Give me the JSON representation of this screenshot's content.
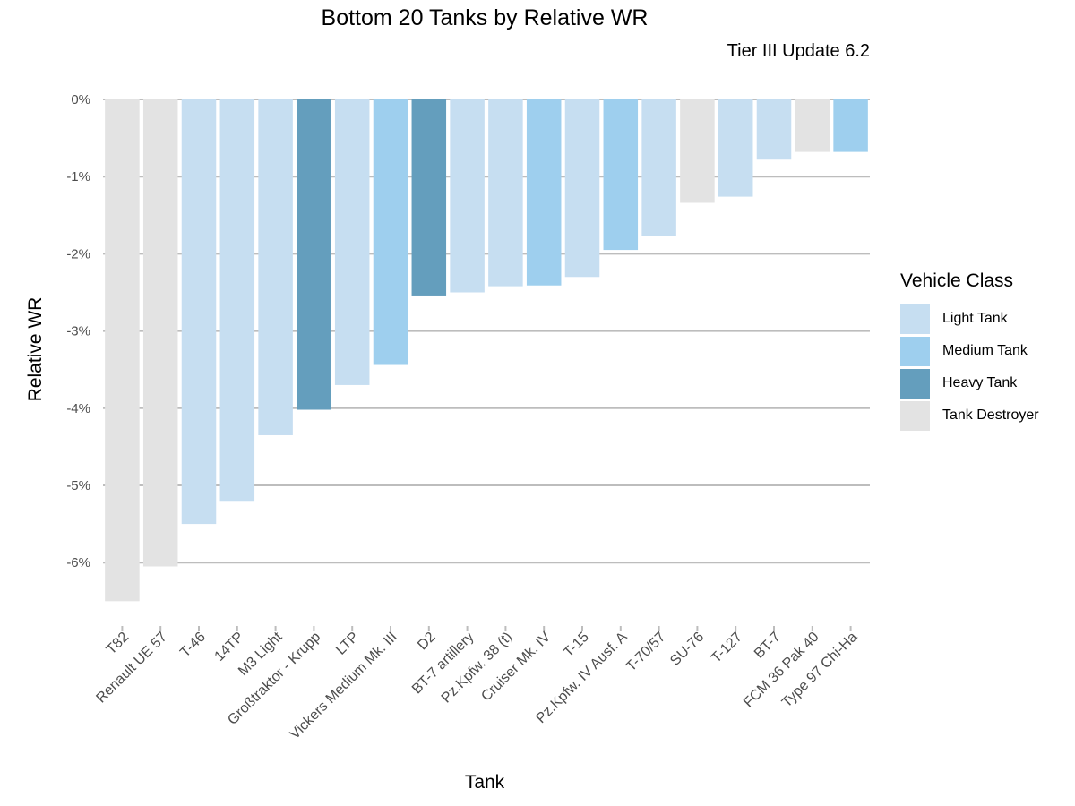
{
  "title": "Bottom 20 Tanks by Relative WR",
  "subtitle": "Tier III Update 6.2",
  "legend": {
    "title": "Vehicle Class",
    "items": [
      {
        "label": "Light Tank",
        "color": "#c6def1"
      },
      {
        "label": "Medium Tank",
        "color": "#9ecfee"
      },
      {
        "label": "Heavy Tank",
        "color": "#649ebd"
      },
      {
        "label": "Tank Destroyer",
        "color": "#e3e3e3"
      }
    ]
  },
  "chart_data": {
    "type": "bar",
    "title": "Bottom 20 Tanks by Relative WR",
    "subtitle": "Tier III Update 6.2",
    "xlabel": "Tank",
    "ylabel": "Relative WR",
    "ylim": [
      -6.5,
      0
    ],
    "yticks": [
      "0%",
      "-1%",
      "-2%",
      "-3%",
      "-4%",
      "-5%",
      "-6%"
    ],
    "grid": "horizontal",
    "legend_position": "right",
    "categories": [
      "T82",
      "Renault UE 57",
      "T-46",
      "14TP",
      "M3 Light",
      "Großtraktor - Krupp",
      "LTP",
      "Vickers Medium Mk. III",
      "D2",
      "BT-7 artillery",
      "Pz.Kpfw. 38 (t)",
      "Cruiser Mk. IV",
      "T-15",
      "Pz.Kpfw. IV Ausf. A",
      "T-70/57",
      "SU-76",
      "T-127",
      "BT-7",
      "FCM 36 Pak 40",
      "Type 97 Chi-Ha"
    ],
    "values": [
      -6.5,
      -6.05,
      -5.5,
      -5.2,
      -4.35,
      -4.02,
      -3.7,
      -3.44,
      -2.54,
      -2.5,
      -2.42,
      -2.41,
      -2.3,
      -1.95,
      -1.77,
      -1.34,
      -1.26,
      -0.78,
      -0.68,
      -0.68
    ],
    "classes": [
      "Tank Destroyer",
      "Tank Destroyer",
      "Light Tank",
      "Light Tank",
      "Light Tank",
      "Heavy Tank",
      "Light Tank",
      "Medium Tank",
      "Heavy Tank",
      "Light Tank",
      "Light Tank",
      "Medium Tank",
      "Light Tank",
      "Medium Tank",
      "Light Tank",
      "Tank Destroyer",
      "Light Tank",
      "Light Tank",
      "Tank Destroyer",
      "Medium Tank"
    ]
  }
}
